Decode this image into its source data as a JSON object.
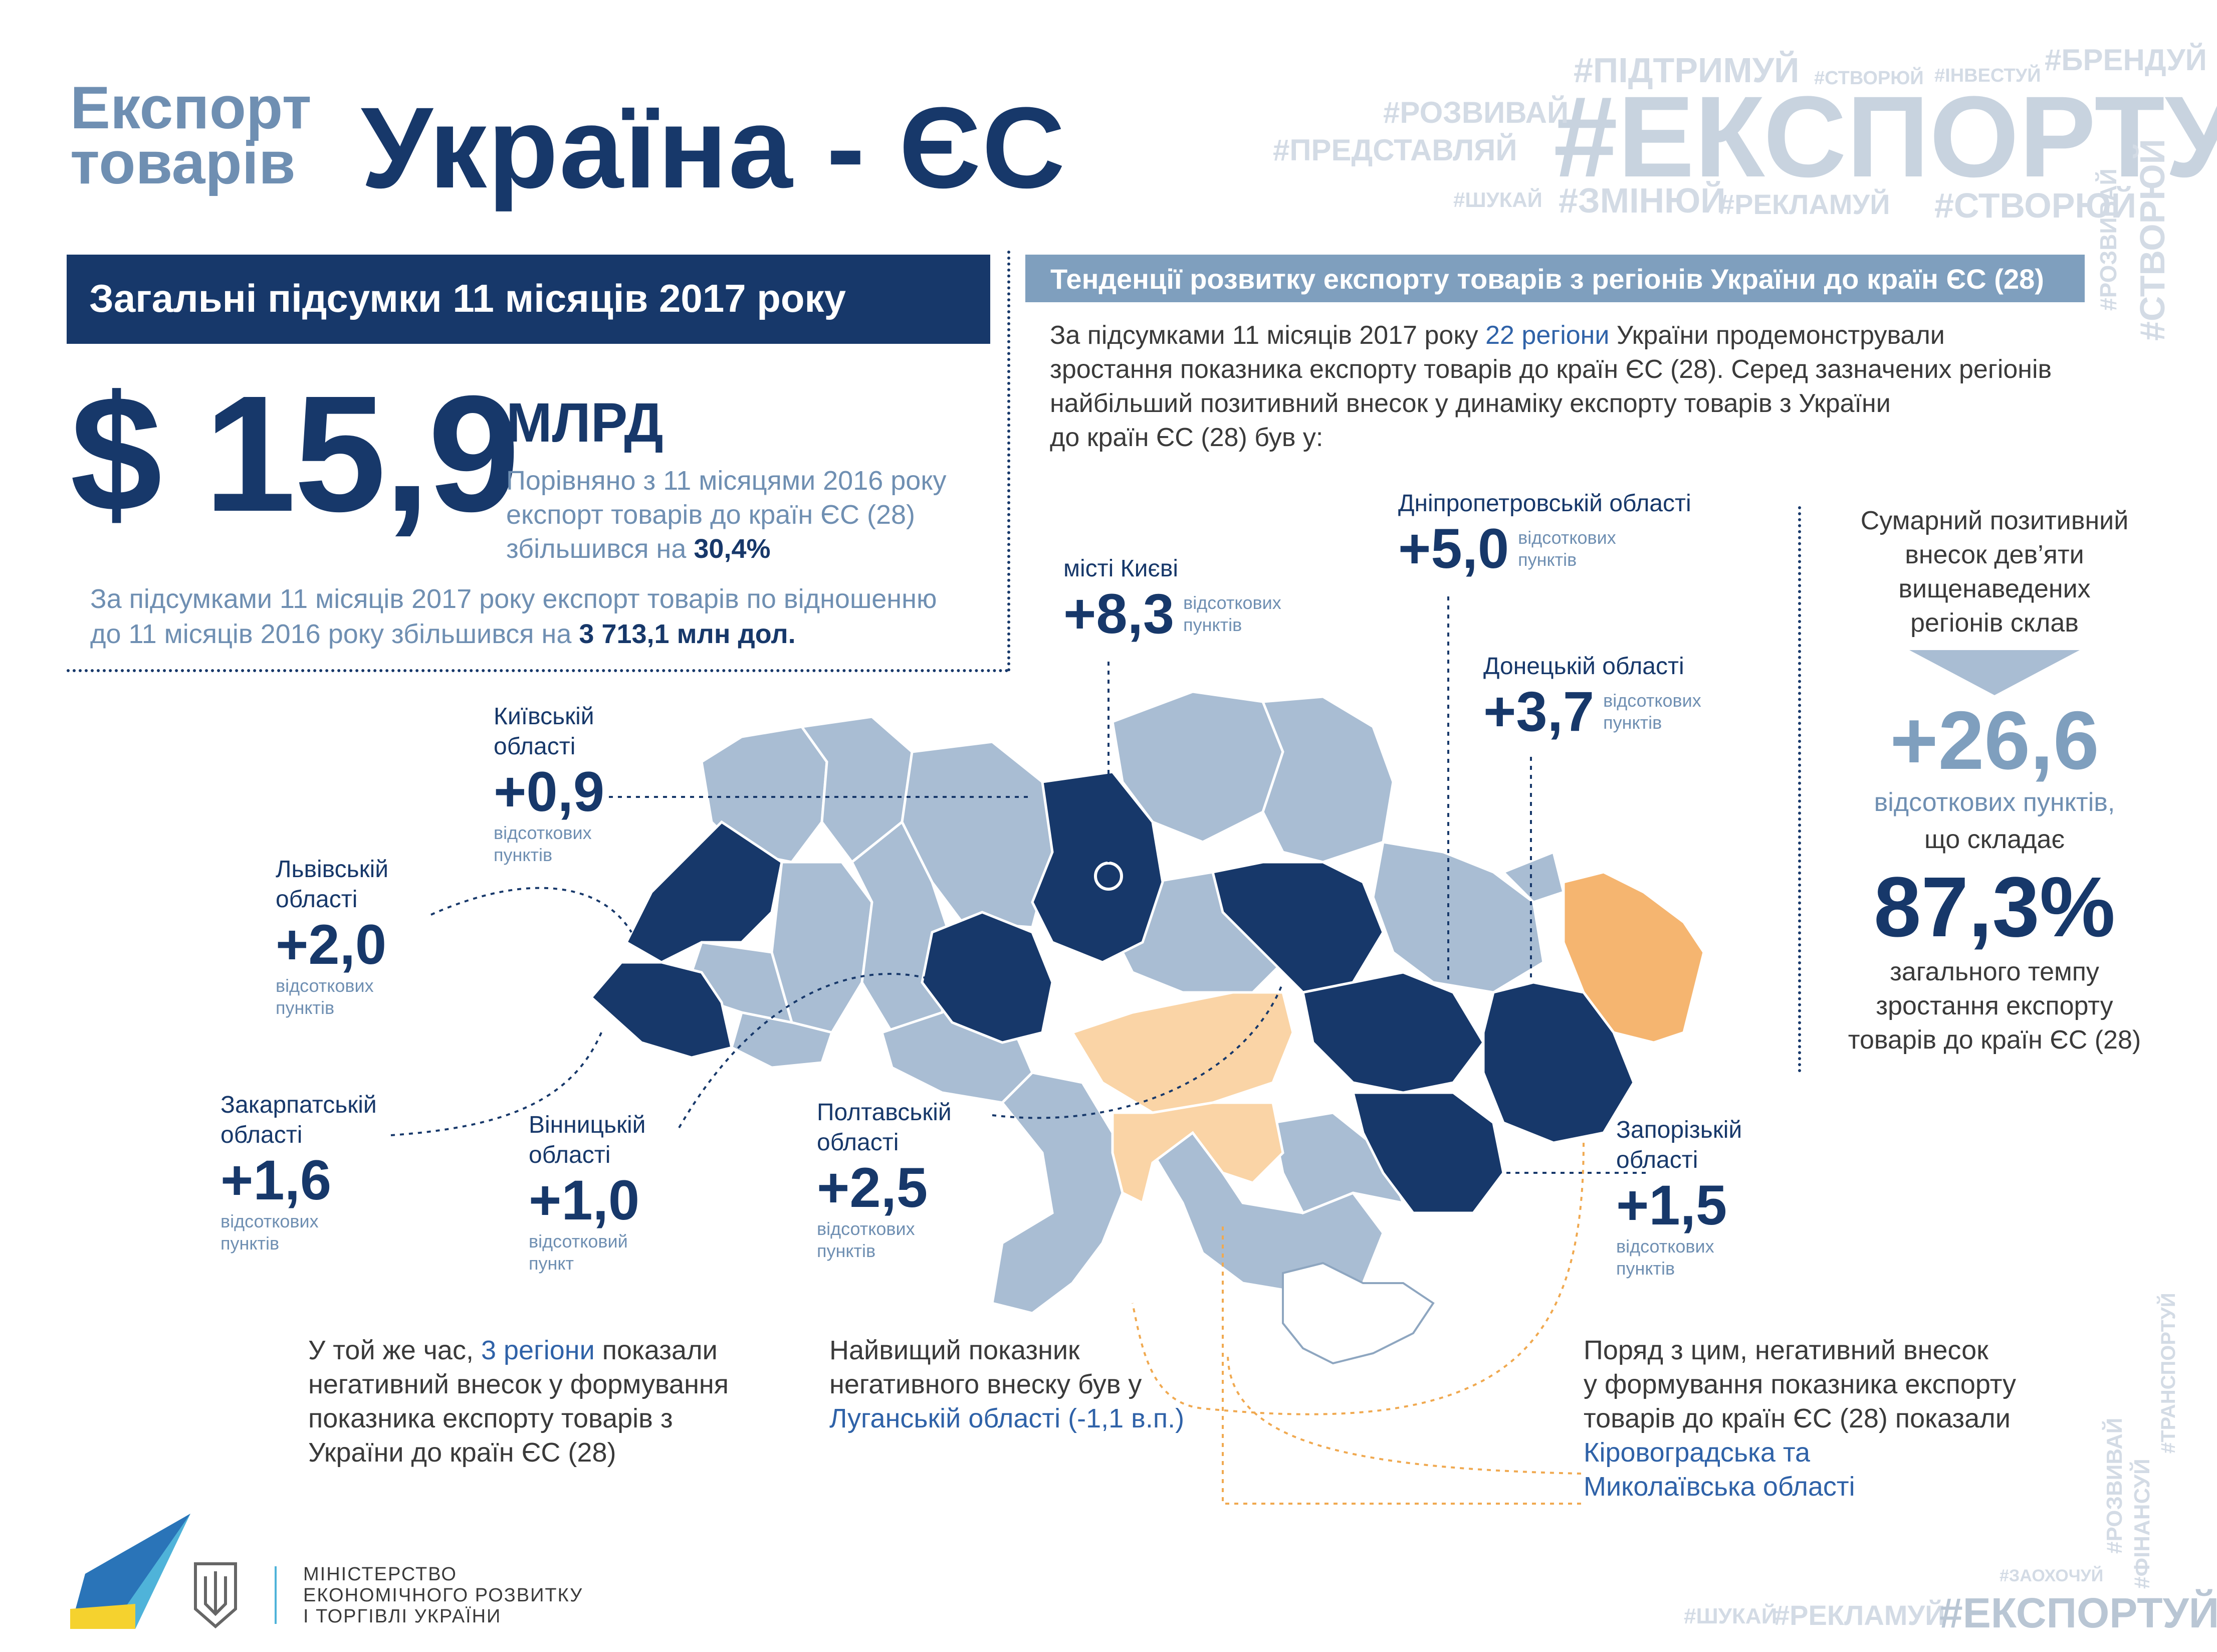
{
  "header": {
    "title_small_1": "Експорт",
    "title_small_2": "товарів",
    "title_big": "Україна - ЄС"
  },
  "hashtags": {
    "main": "#ЕКСПОРТУЙ",
    "t1": "#ПІДТРИМУЙ",
    "t2": "#СТВОРЮЙ",
    "t3": "#ІНВЕСТУЙ",
    "t4": "#БРЕНДУЙ",
    "t5": "#РОЗВИВАЙ",
    "t6": "#ПРЕДСТАВЛЯЙ",
    "t7": "#ШУКАЙ",
    "t8": "#ЗМІНЮЙ",
    "t9": "#РЕКЛАМУЙ",
    "t10": "#СТВОРЮЙ",
    "v1": "#РОЗВИВАЙ",
    "v2": "#СТВОРЮЙ",
    "v3": "#РОЗВИВАЙ",
    "v4": "#ФІНАНСУЙ",
    "v5": "#ТРАНСПОРТУЙ",
    "b1": "#ЗАОХОЧУЙ",
    "b2": "#ШУКАЙ",
    "b3": "#РЕКЛАМУЙ",
    "b4": "#ЕКСПОРТУЙ"
  },
  "summary": {
    "bar_title": "Загальні підсумки 11 місяців 2017 року",
    "amount": "$ 15,9",
    "amount_unit": "МЛРД",
    "compare_1": "Порівняно з 11 місяцями 2016 року",
    "compare_2": "експорт товарів до країн ЄС (28)",
    "compare_3_prefix": "збільшився на ",
    "compare_3_value": "30,4%",
    "note_1": "За підсумками 11 місяців 2017 року експорт товарів по відношенню",
    "note_2_prefix": "до 11 місяців 2016 року збільшився на ",
    "note_2_value": "3 713,1 млн дол."
  },
  "trends": {
    "bar_title": "Тенденції розвитку експорту товарів з регіонів України до країн ЄС (28)",
    "intro_1_prefix": "За підсумками 11 місяців 2017 року ",
    "intro_1_highlight": "22 регіони",
    "intro_1_suffix": " України продемонстрували",
    "intro_2": "зростання показника експорту товарів до країн ЄС (28). Серед зазначених регіонів",
    "intro_3": "найбільший позитивний внесок у динаміку експорту товарів з України",
    "intro_4": "до країн ЄС (28) був у:"
  },
  "regions": {
    "kyiv_city": {
      "name": "місті Києві",
      "value": "+8,3",
      "unit_1": "відсоткових",
      "unit_2": "пунктів"
    },
    "dnipro": {
      "name": "Дніпропетровській області",
      "value": "+5,0",
      "unit_1": "відсоткових",
      "unit_2": "пунктів"
    },
    "donetsk": {
      "name": "Донецькій області",
      "value": "+3,7",
      "unit_1": "відсоткових",
      "unit_2": "пунктів"
    },
    "kyiv_obl": {
      "name_1": "Київській",
      "name_2": "області",
      "value": "+0,9",
      "unit_1": "відсоткових",
      "unit_2": "пунктів"
    },
    "lviv": {
      "name_1": "Львівській",
      "name_2": "області",
      "value": "+2,0",
      "unit_1": "відсоткових",
      "unit_2": "пунктів"
    },
    "zakarpattia": {
      "name_1": "Закарпатській",
      "name_2": "області",
      "value": "+1,6",
      "unit_1": "відсоткових",
      "unit_2": "пунктів"
    },
    "vinnytsia": {
      "name_1": "Вінницькій",
      "name_2": "області",
      "value": "+1,0",
      "unit_1": "відсотковий",
      "unit_2": "пункт"
    },
    "poltava": {
      "name_1": "Полтавській",
      "name_2": "області",
      "value": "+2,5",
      "unit_1": "відсоткових",
      "unit_2": "пунктів"
    },
    "zaporizhzhia": {
      "name_1": "Запорізькій",
      "name_2": "області",
      "value": "+1,5",
      "unit_1": "відсоткових",
      "unit_2": "пунктів"
    }
  },
  "total": {
    "line_1": "Сумарний позитивний",
    "line_2": "внесок дев’яти",
    "line_3": "вищенаведених",
    "line_4": "регіонів склав",
    "value": "+26,6",
    "unit": "відсоткових пунктів,",
    "that": "що складає",
    "percent": "87,3%",
    "tail_1": "загального темпу",
    "tail_2": "зростання експорту",
    "tail_3": "товарів до країн ЄС (28)"
  },
  "negative": {
    "left_1_prefix": "У той же час, ",
    "left_1_highlight": "3 регіони",
    "left_1_suffix": " показали",
    "left_2": "негативний внесок у формування",
    "left_3": "показника експорту товарів з",
    "left_4": "України до країн ЄС (28)",
    "mid_1": "Найвищий показник",
    "mid_2": "негативного внеску був у",
    "mid_3": "Луганській області (-1,1 в.п.)",
    "right_1": "Поряд з цим, негативний внесок",
    "right_2": "у формування показника експорту",
    "right_3": "товарів до країн ЄС (28) показали",
    "right_4": "Кіровоградська та",
    "right_5": "Миколаївська області"
  },
  "footer": {
    "ministry_1": "МІНІСТЕРСТВО",
    "ministry_2": "ЕКОНОМІЧНОГО РОЗВИТКУ",
    "ministry_3": "І ТОРГІВЛІ УКРАЇНИ"
  },
  "colors": {
    "navy": "#17386a",
    "steel": "#7f9fbe",
    "light_region": "#a9bdd3",
    "orange": "#f5b570",
    "peach": "#fad4a6"
  }
}
